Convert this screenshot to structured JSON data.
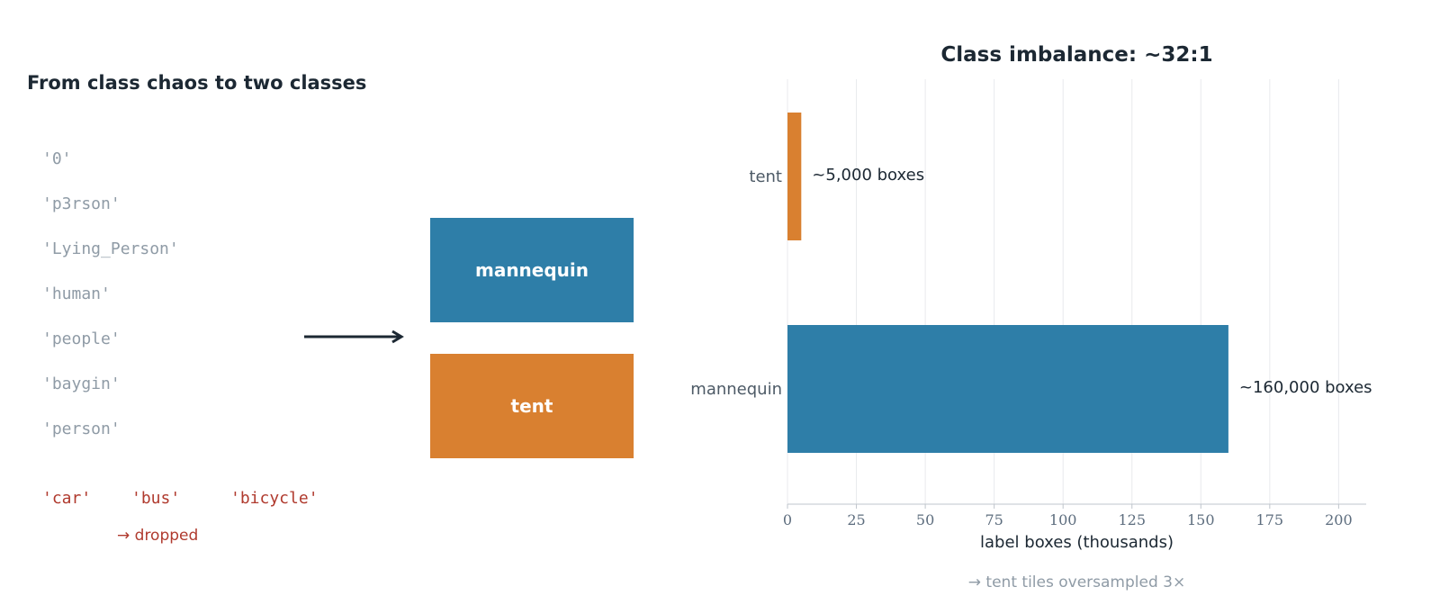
{
  "left_panel": {
    "title": "From class chaos to two classes",
    "raw_labels": [
      "'0'",
      "'p3rson'",
      "'Lying_Person'",
      "'human'",
      "'people'",
      "'baygin'",
      "'person'"
    ],
    "dropped_labels": [
      "'car'",
      "'bus'",
      "'bicycle'"
    ],
    "dropped_note": "→ dropped",
    "target_classes": [
      {
        "label": "mannequin",
        "color": "#2e7ea8"
      },
      {
        "label": "tent",
        "color": "#d98030"
      }
    ],
    "arrow_color": "#1c2833"
  },
  "chart_data": {
    "type": "bar",
    "orientation": "horizontal",
    "title": "Class imbalance: ~32:1",
    "categories": [
      "tent",
      "mannequin"
    ],
    "values": [
      5,
      160
    ],
    "data_labels": [
      "~5,000 boxes",
      "~160,000 boxes"
    ],
    "colors": [
      "#d98030",
      "#2e7ea8"
    ],
    "xlabel": "label boxes (thousands)",
    "ylabel": "",
    "xlim": [
      0,
      210
    ],
    "xticks": [
      0,
      25,
      50,
      75,
      100,
      125,
      150,
      175,
      200
    ],
    "grid": "vertical",
    "legend": "none",
    "footnote": "→ tent tiles oversampled 3×"
  }
}
